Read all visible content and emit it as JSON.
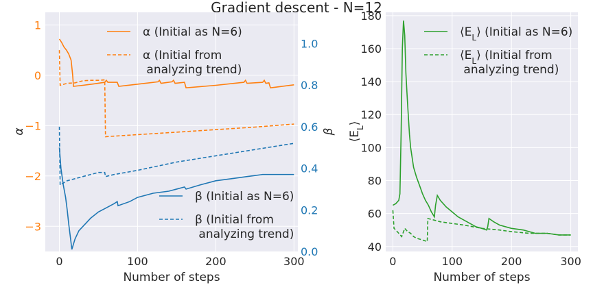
{
  "title": "Gradient descent - N=12",
  "colors": {
    "alpha": "#ff7f0e",
    "beta": "#1f77b4",
    "energy": "#2ca02c",
    "panel_bg": "#eaeaf2",
    "grid": "#ffffff",
    "text": "#262626"
  },
  "chart_data": [
    {
      "type": "line",
      "xlabel": "Number of steps",
      "xlim": [
        -18,
        305
      ],
      "xticks": [
        0,
        100,
        200,
        300
      ],
      "left_axis": {
        "label": "α",
        "ylim": [
          -3.5,
          1.25
        ],
        "ticks": [
          1,
          0,
          -1,
          -2,
          -3
        ]
      },
      "right_axis": {
        "label": "β",
        "ylim": [
          0.0,
          1.15
        ],
        "ticks": [
          0.0,
          0.2,
          0.4,
          0.6,
          0.8,
          1.0
        ]
      },
      "series": [
        {
          "name": "α (Initial as N=6)",
          "axis": "left",
          "color": "#ff7f0e",
          "dash": "solid",
          "points": [
            [
              0,
              0.72
            ],
            [
              3,
              0.65
            ],
            [
              6,
              0.56
            ],
            [
              9,
              0.5
            ],
            [
              12,
              0.42
            ],
            [
              15,
              0.3
            ],
            [
              17,
              0.0
            ],
            [
              18,
              -0.22
            ],
            [
              30,
              -0.2
            ],
            [
              45,
              -0.17
            ],
            [
              58,
              -0.14
            ],
            [
              60,
              -0.1
            ],
            [
              62,
              -0.14
            ],
            [
              74,
              -0.14
            ],
            [
              76,
              -0.22
            ],
            [
              110,
              -0.16
            ],
            [
              126,
              -0.13
            ],
            [
              128,
              -0.1
            ],
            [
              130,
              -0.16
            ],
            [
              144,
              -0.13
            ],
            [
              146,
              -0.1
            ],
            [
              148,
              -0.16
            ],
            [
              160,
              -0.14
            ],
            [
              162,
              -0.25
            ],
            [
              200,
              -0.2
            ],
            [
              236,
              -0.14
            ],
            [
              238,
              -0.1
            ],
            [
              240,
              -0.16
            ],
            [
              260,
              -0.14
            ],
            [
              262,
              -0.1
            ],
            [
              264,
              -0.16
            ],
            [
              268,
              -0.15
            ],
            [
              270,
              -0.25
            ],
            [
              300,
              -0.19
            ]
          ]
        },
        {
          "name": "α (Initial from\n analyzing trend)",
          "axis": "left",
          "color": "#ff7f0e",
          "dash": "dashed",
          "points": [
            [
              0,
              0.5
            ],
            [
              1,
              -0.2
            ],
            [
              10,
              -0.16
            ],
            [
              20,
              -0.15
            ],
            [
              30,
              -0.11
            ],
            [
              40,
              -0.1
            ],
            [
              50,
              -0.1
            ],
            [
              58,
              -0.09
            ],
            [
              59,
              -1.22
            ],
            [
              100,
              -1.18
            ],
            [
              150,
              -1.13
            ],
            [
              200,
              -1.08
            ],
            [
              250,
              -1.03
            ],
            [
              300,
              -0.97
            ]
          ]
        },
        {
          "name": "β (Initial as N=6)",
          "axis": "right",
          "color": "#1f77b4",
          "dash": "solid",
          "points": [
            [
              0,
              0.5
            ],
            [
              2,
              0.4
            ],
            [
              5,
              0.32
            ],
            [
              8,
              0.26
            ],
            [
              10,
              0.2
            ],
            [
              12,
              0.13
            ],
            [
              14,
              0.07
            ],
            [
              16,
              0.01
            ],
            [
              20,
              0.06
            ],
            [
              25,
              0.1
            ],
            [
              30,
              0.12
            ],
            [
              40,
              0.16
            ],
            [
              50,
              0.19
            ],
            [
              60,
              0.21
            ],
            [
              70,
              0.23
            ],
            [
              74,
              0.24
            ],
            [
              75,
              0.22
            ],
            [
              90,
              0.24
            ],
            [
              100,
              0.26
            ],
            [
              120,
              0.28
            ],
            [
              140,
              0.29
            ],
            [
              160,
              0.31
            ],
            [
              162,
              0.3
            ],
            [
              180,
              0.32
            ],
            [
              200,
              0.34
            ],
            [
              220,
              0.35
            ],
            [
              240,
              0.36
            ],
            [
              260,
              0.37
            ],
            [
              280,
              0.37
            ],
            [
              300,
              0.37
            ]
          ]
        },
        {
          "name": "β (Initial from\n analyzing trend)",
          "axis": "right",
          "color": "#1f77b4",
          "dash": "dashed",
          "points": [
            [
              0,
              0.6
            ],
            [
              1,
              0.32
            ],
            [
              10,
              0.34
            ],
            [
              20,
              0.35
            ],
            [
              30,
              0.36
            ],
            [
              40,
              0.37
            ],
            [
              50,
              0.38
            ],
            [
              58,
              0.38
            ],
            [
              59,
              0.36
            ],
            [
              70,
              0.37
            ],
            [
              100,
              0.39
            ],
            [
              150,
              0.43
            ],
            [
              200,
              0.46
            ],
            [
              250,
              0.49
            ],
            [
              300,
              0.52
            ]
          ]
        }
      ]
    },
    {
      "type": "line",
      "xlabel": "Number of steps",
      "ylabel": "⟨E_L⟩",
      "xlim": [
        -12,
        312
      ],
      "ylim": [
        37,
        182
      ],
      "xticks": [
        0,
        100,
        200,
        300
      ],
      "yticks": [
        40,
        60,
        80,
        100,
        120,
        140,
        160,
        180
      ],
      "series": [
        {
          "name": "⟨E_L⟩ (Initial as N=6)",
          "color": "#2ca02c",
          "dash": "solid",
          "points": [
            [
              0,
              65
            ],
            [
              5,
              66
            ],
            [
              10,
              68
            ],
            [
              12,
              72
            ],
            [
              14,
              110
            ],
            [
              16,
              160
            ],
            [
              18,
              177
            ],
            [
              20,
              168
            ],
            [
              22,
              145
            ],
            [
              24,
              132
            ],
            [
              26,
              120
            ],
            [
              28,
              108
            ],
            [
              30,
              100
            ],
            [
              35,
              88
            ],
            [
              40,
              82
            ],
            [
              45,
              77
            ],
            [
              50,
              72
            ],
            [
              55,
              68
            ],
            [
              60,
              65
            ],
            [
              65,
              61
            ],
            [
              70,
              58
            ],
            [
              72,
              65
            ],
            [
              75,
              71
            ],
            [
              80,
              68
            ],
            [
              90,
              64
            ],
            [
              100,
              61
            ],
            [
              110,
              58
            ],
            [
              120,
              56
            ],
            [
              130,
              54
            ],
            [
              140,
              52
            ],
            [
              150,
              51
            ],
            [
              158,
              50
            ],
            [
              160,
              52
            ],
            [
              162,
              57
            ],
            [
              170,
              55
            ],
            [
              180,
              53
            ],
            [
              200,
              51
            ],
            [
              220,
              50
            ],
            [
              240,
              48
            ],
            [
              260,
              48
            ],
            [
              280,
              47
            ],
            [
              300,
              47
            ]
          ]
        },
        {
          "name": "⟨E_L⟩ (Initial from\n analyzing trend)",
          "color": "#2ca02c",
          "dash": "dashed",
          "points": [
            [
              0,
              62
            ],
            [
              2,
              51
            ],
            [
              5,
              50
            ],
            [
              10,
              48
            ],
            [
              15,
              46
            ],
            [
              20,
              51
            ],
            [
              25,
              49
            ],
            [
              30,
              48
            ],
            [
              35,
              46
            ],
            [
              40,
              45
            ],
            [
              50,
              44
            ],
            [
              58,
              43
            ],
            [
              59,
              57
            ],
            [
              70,
              56
            ],
            [
              80,
              55
            ],
            [
              100,
              54
            ],
            [
              120,
              53
            ],
            [
              150,
              51
            ],
            [
              180,
              50
            ],
            [
              200,
              49
            ],
            [
              230,
              48
            ],
            [
              260,
              48
            ],
            [
              280,
              47
            ],
            [
              300,
              47
            ]
          ]
        }
      ]
    }
  ]
}
